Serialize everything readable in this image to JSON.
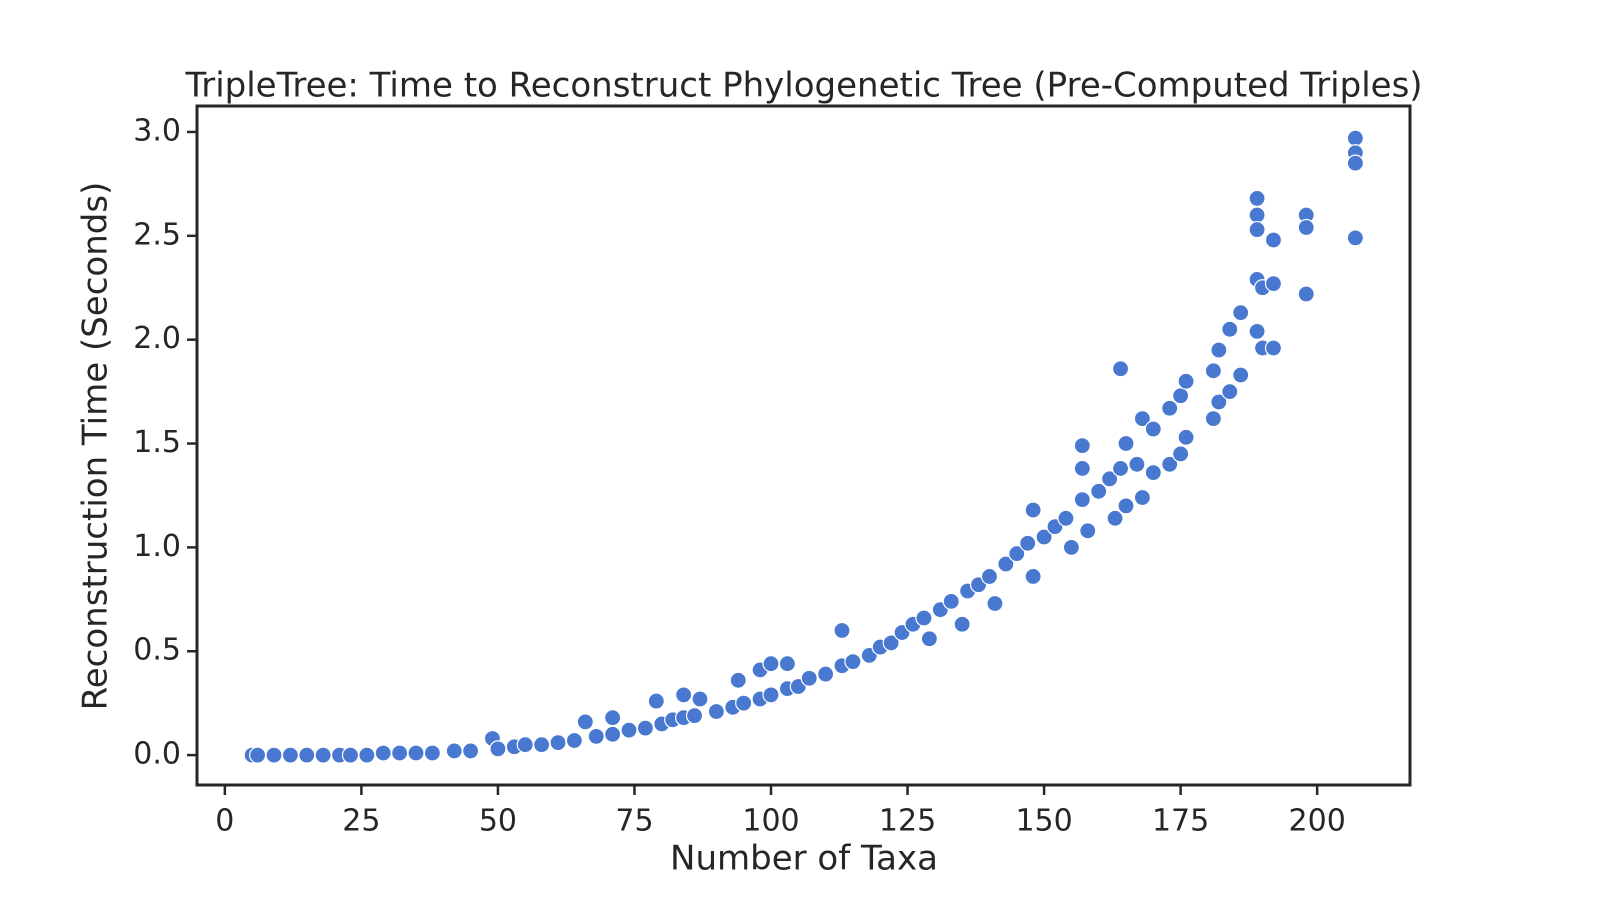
{
  "chart_data": {
    "type": "scatter",
    "title": "TripleTree: Time to Reconstruct Phylogenetic Tree (Pre-Computed Triples)",
    "x_label": "Number of Taxa",
    "y_label": "Reconstruction Time (Seconds)",
    "color": "#4878d0",
    "xlim": [
      -5.1,
      217
    ],
    "ylim": [
      -0.144,
      3.125
    ],
    "xticks": [
      0,
      25,
      50,
      75,
      100,
      125,
      150,
      175,
      200
    ],
    "yticks": [
      {
        "value": 0,
        "label": "0.0"
      },
      0.5,
      {
        "value": 1,
        "label": "1.0"
      },
      1.5,
      {
        "value": 2,
        "label": "2.0"
      },
      2.5,
      {
        "value": 3,
        "label": "3.0"
      }
    ],
    "x": [
      5,
      6,
      9,
      12,
      15,
      18,
      21,
      23,
      26,
      29,
      32,
      35,
      38,
      42,
      45,
      49,
      50,
      53,
      55,
      58,
      61,
      64,
      66,
      68,
      71,
      71,
      74,
      77,
      79,
      80,
      82,
      84,
      84,
      86,
      87,
      90,
      93,
      94,
      95,
      98,
      98,
      100,
      100,
      103,
      103,
      105,
      107,
      110,
      113,
      113,
      115,
      118,
      120,
      122,
      124,
      126,
      128,
      129,
      131,
      133,
      135,
      136,
      138,
      140,
      141,
      143,
      145,
      147,
      148,
      148,
      150,
      152,
      154,
      155,
      157,
      157,
      157,
      158,
      160,
      162,
      163,
      164,
      164,
      165,
      165,
      167,
      168,
      168,
      170,
      170,
      173,
      173,
      175,
      175,
      176,
      176,
      181,
      181,
      182,
      182,
      184,
      184,
      186,
      186,
      189,
      189,
      189,
      189,
      189,
      190,
      190,
      192,
      192,
      192,
      198,
      198,
      198,
      207,
      207,
      207,
      207
    ],
    "y": [
      0,
      0,
      0,
      0,
      0,
      0,
      0,
      0,
      0,
      0.01,
      0.01,
      0.01,
      0.01,
      0.02,
      0.02,
      0.08,
      0.03,
      0.04,
      0.05,
      0.05,
      0.06,
      0.07,
      0.16,
      0.09,
      0.18,
      0.1,
      0.12,
      0.13,
      0.26,
      0.15,
      0.17,
      0.29,
      0.18,
      0.19,
      0.27,
      0.21,
      0.23,
      0.36,
      0.25,
      0.41,
      0.27,
      0.44,
      0.29,
      0.44,
      0.32,
      0.33,
      0.37,
      0.39,
      0.6,
      0.43,
      0.45,
      0.48,
      0.52,
      0.54,
      0.59,
      0.63,
      0.66,
      0.56,
      0.7,
      0.74,
      0.63,
      0.79,
      0.82,
      0.86,
      0.73,
      0.92,
      0.97,
      1.02,
      1.18,
      0.86,
      1.05,
      1.1,
      1.14,
      1.0,
      1.38,
      1.49,
      1.23,
      1.08,
      1.27,
      1.33,
      1.14,
      1.86,
      1.38,
      1.5,
      1.2,
      1.4,
      1.62,
      1.24,
      1.57,
      1.36,
      1.67,
      1.4,
      1.73,
      1.45,
      1.8,
      1.53,
      1.85,
      1.62,
      1.95,
      1.7,
      2.05,
      1.75,
      2.13,
      1.83,
      2.68,
      2.6,
      2.53,
      2.29,
      2.04,
      2.25,
      1.96,
      2.48,
      2.27,
      1.96,
      2.6,
      2.54,
      2.22,
      2.97,
      2.9,
      2.85,
      2.49
    ]
  }
}
